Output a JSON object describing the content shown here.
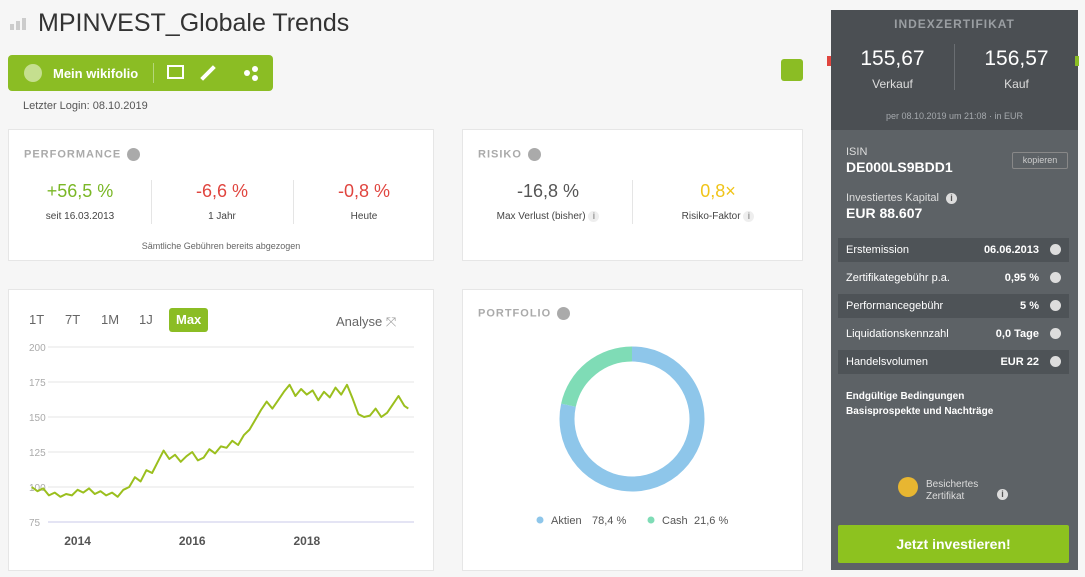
{
  "header": {
    "title": "MPINVEST_Globale Trends",
    "login": "Letzter Login: 08.10.2019"
  },
  "toolbar": {
    "button": "Mein wikifolio"
  },
  "performance": {
    "title": "PERFORMANCE",
    "items": [
      {
        "value": "+56,5 %",
        "label": "seit 16.03.2013"
      },
      {
        "value": "-6,6 %",
        "label": "1 Jahr"
      },
      {
        "value": "-0,8 %",
        "label": "Heute"
      }
    ],
    "note": "Sämtliche Gebühren bereits abgezogen"
  },
  "risiko": {
    "title": "RISIKO",
    "items": [
      {
        "value": "-16,8 %",
        "label": "Max Verlust (bisher)"
      },
      {
        "value": "0,8×",
        "label": "Risiko-Faktor"
      }
    ]
  },
  "chart_tabs": [
    "1T",
    "7T",
    "1M",
    "1J",
    "Max"
  ],
  "analyse": "Analyse",
  "portfolio_title": "PORTFOLIO",
  "chart_data": [
    {
      "type": "line",
      "color": "#9bbf1e",
      "grid": true,
      "x": [
        2013.2,
        2013.3,
        2013.4,
        2013.5,
        2013.6,
        2013.7,
        2013.8,
        2013.9,
        2014.0,
        2014.1,
        2014.2,
        2014.3,
        2014.4,
        2014.5,
        2014.6,
        2014.7,
        2014.8,
        2014.9,
        2015.0,
        2015.1,
        2015.2,
        2015.3,
        2015.4,
        2015.5,
        2015.6,
        2015.7,
        2015.8,
        2015.9,
        2016.0,
        2016.1,
        2016.2,
        2016.3,
        2016.4,
        2016.5,
        2016.6,
        2016.7,
        2016.8,
        2016.9,
        2017.0,
        2017.1,
        2017.2,
        2017.3,
        2017.4,
        2017.5,
        2017.6,
        2017.7,
        2017.8,
        2017.9,
        2018.0,
        2018.1,
        2018.2,
        2018.3,
        2018.4,
        2018.5,
        2018.6,
        2018.7,
        2018.8,
        2018.9,
        2019.0,
        2019.1,
        2019.2,
        2019.3,
        2019.4,
        2019.5,
        2019.6,
        2019.7,
        2019.77
      ],
      "values": [
        100,
        97,
        99,
        94,
        96,
        93,
        95,
        94,
        98,
        96,
        99,
        95,
        97,
        94,
        96,
        93,
        98,
        100,
        107,
        104,
        112,
        110,
        118,
        126,
        120,
        123,
        118,
        122,
        125,
        119,
        121,
        127,
        124,
        129,
        128,
        133,
        130,
        137,
        141,
        148,
        155,
        161,
        156,
        162,
        168,
        173,
        165,
        170,
        166,
        169,
        162,
        168,
        164,
        171,
        166,
        173,
        163,
        152,
        150,
        151,
        156,
        150,
        153,
        159,
        165,
        158,
        156
      ],
      "xlim": [
        2013.1,
        2019.8
      ],
      "xticks": [
        2014,
        2016,
        2018
      ],
      "ylim": [
        75,
        200
      ],
      "yticks": [
        75,
        100,
        125,
        150,
        175,
        200
      ]
    },
    {
      "type": "pie",
      "categories": [
        "Aktien",
        "Cash"
      ],
      "values": [
        78.4,
        21.6
      ],
      "value_labels": [
        "78,4 %",
        "21,6 %"
      ],
      "colors": [
        "#8ec6ea",
        "#7fdcb6"
      ]
    }
  ],
  "sidebar": {
    "title": "INDEXZERTIFIKAT",
    "sell_price": "155,67",
    "sell_label": "Verkauf",
    "buy_price": "156,57",
    "buy_label": "Kauf",
    "timestamp": "per 08.10.2019 um 21:08 · in EUR",
    "isin_label": "ISIN",
    "isin": "DE000LS9BDD1",
    "copy": "kopieren",
    "capital_label": "Investiertes Kapital",
    "capital": "EUR 88.607",
    "rows": [
      [
        "Erstemission",
        "06.06.2013"
      ],
      [
        "Zertifikategebühr p.a.",
        "0,95 %"
      ],
      [
        "Performancegebühr",
        "5 %"
      ],
      [
        "Liquidationskennzahl",
        "0,0 Tage"
      ],
      [
        "Handelsvolumen",
        "EUR 22"
      ]
    ],
    "links": [
      "Endgültige Bedingungen",
      "Basisprospekte und Nachträge"
    ],
    "badge": [
      "Besichertes",
      "Zertifikat"
    ],
    "cta": "Jetzt investieren!"
  }
}
